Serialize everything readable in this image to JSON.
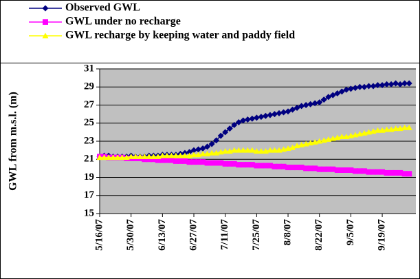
{
  "chart_data": {
    "type": "line",
    "y_label": "GWL from m.s.l. (m)",
    "x": [
      "5/16/07",
      "5/18/07",
      "5/20/07",
      "5/22/07",
      "5/24/07",
      "5/26/07",
      "5/28/07",
      "5/30/07",
      "6/1/07",
      "6/3/07",
      "6/5/07",
      "6/7/07",
      "6/9/07",
      "6/11/07",
      "6/13/07",
      "6/15/07",
      "6/17/07",
      "6/19/07",
      "6/21/07",
      "6/23/07",
      "6/25/07",
      "6/27/07",
      "6/29/07",
      "7/1/07",
      "7/3/07",
      "7/5/07",
      "7/7/07",
      "7/9/07",
      "7/11/07",
      "7/13/07",
      "7/15/07",
      "7/17/07",
      "7/19/07",
      "7/21/07",
      "7/23/07",
      "7/25/07",
      "7/27/07",
      "7/29/07",
      "7/31/07",
      "8/2/07",
      "8/4/07",
      "8/6/07",
      "8/8/07",
      "8/10/07",
      "8/12/07",
      "8/14/07",
      "8/16/07",
      "8/18/07",
      "8/20/07",
      "8/22/07",
      "8/24/07",
      "8/26/07",
      "8/28/07",
      "8/30/07",
      "9/1/07",
      "9/3/07",
      "9/5/07",
      "9/7/07",
      "9/9/07",
      "9/11/07",
      "9/13/07",
      "9/15/07",
      "9/17/07",
      "9/19/07",
      "9/21/07",
      "9/23/07",
      "9/25/07",
      "9/27/07",
      "9/29/07",
      "10/1/07"
    ],
    "series": [
      {
        "name": "Observed GWL",
        "color": "#000080",
        "marker": "diamond",
        "values": [
          21.3,
          21.4,
          21.4,
          21.3,
          21.3,
          21.3,
          21.3,
          21.4,
          21.3,
          21.3,
          21.3,
          21.4,
          21.4,
          21.4,
          21.5,
          21.5,
          21.5,
          21.5,
          21.6,
          21.7,
          21.8,
          22.0,
          22.1,
          22.2,
          22.4,
          22.7,
          23.1,
          23.6,
          24.0,
          24.4,
          24.8,
          25.1,
          25.3,
          25.4,
          25.5,
          25.6,
          25.7,
          25.8,
          25.9,
          26.0,
          26.1,
          26.2,
          26.3,
          26.5,
          26.7,
          26.9,
          27.0,
          27.1,
          27.2,
          27.3,
          27.6,
          27.9,
          28.1,
          28.3,
          28.5,
          28.7,
          28.8,
          28.9,
          29.0,
          29.0,
          29.1,
          29.1,
          29.2,
          29.2,
          29.3,
          29.3,
          29.4,
          29.3,
          29.4,
          29.4
        ]
      },
      {
        "name": "GWL under no recharge",
        "color": "#ff00ff",
        "marker": "square",
        "values": [
          21.3,
          21.3,
          21.2,
          21.2,
          21.2,
          21.2,
          21.1,
          21.1,
          21.1,
          21.1,
          21.0,
          21.0,
          21.0,
          20.9,
          20.9,
          20.9,
          20.9,
          20.8,
          20.8,
          20.8,
          20.7,
          20.7,
          20.7,
          20.7,
          20.6,
          20.6,
          20.6,
          20.6,
          20.5,
          20.5,
          20.5,
          20.4,
          20.4,
          20.4,
          20.4,
          20.3,
          20.3,
          20.3,
          20.3,
          20.2,
          20.2,
          20.2,
          20.1,
          20.1,
          20.1,
          20.1,
          20.0,
          20.0,
          20.0,
          19.9,
          19.9,
          19.9,
          19.9,
          19.8,
          19.8,
          19.8,
          19.8,
          19.7,
          19.7,
          19.7,
          19.6,
          19.6,
          19.6,
          19.6,
          19.5,
          19.5,
          19.5,
          19.5,
          19.4,
          19.4
        ]
      },
      {
        "name": "GWL recharge by keeping water and paddy field",
        "color": "#ffff00",
        "marker": "triangle",
        "values": [
          21.2,
          21.2,
          21.2,
          21.2,
          21.2,
          21.2,
          21.2,
          21.3,
          21.3,
          21.3,
          21.3,
          21.3,
          21.3,
          21.3,
          21.4,
          21.4,
          21.4,
          21.4,
          21.4,
          21.4,
          21.4,
          21.5,
          21.5,
          21.6,
          21.6,
          21.7,
          21.7,
          21.8,
          21.9,
          21.9,
          22.0,
          22.0,
          22.0,
          22.0,
          22.0,
          21.9,
          21.9,
          21.9,
          22.0,
          22.0,
          22.0,
          22.1,
          22.2,
          22.3,
          22.5,
          22.6,
          22.7,
          22.8,
          22.9,
          23.0,
          23.1,
          23.2,
          23.3,
          23.4,
          23.5,
          23.5,
          23.6,
          23.7,
          23.8,
          23.9,
          24.0,
          24.1,
          24.2,
          24.2,
          24.3,
          24.3,
          24.4,
          24.4,
          24.5,
          24.5
        ]
      }
    ],
    "xlim": [
      "5/16/07",
      "10/4/07"
    ],
    "xticks": [
      "5/16/07",
      "5/30/07",
      "6/13/07",
      "6/27/07",
      "7/11/07",
      "7/25/07",
      "8/8/07",
      "8/22/07",
      "9/5/07",
      "9/19/07"
    ],
    "ylim": [
      15,
      31
    ],
    "yticks": [
      15,
      17,
      19,
      21,
      23,
      25,
      27,
      29,
      31
    ],
    "grid": true,
    "legend": "top"
  }
}
